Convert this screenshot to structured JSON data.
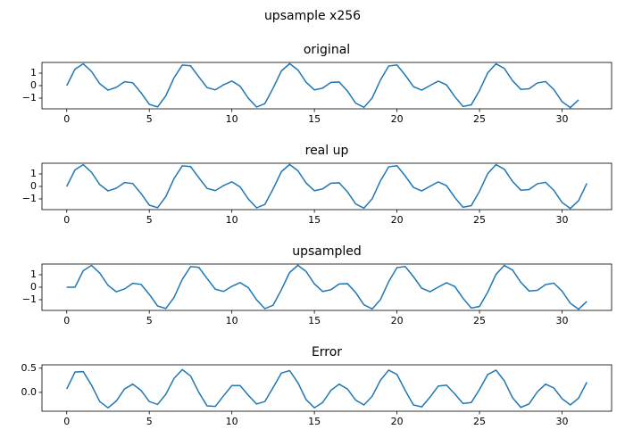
{
  "figure_title": "upsample x256",
  "chart_data": [
    {
      "type": "line",
      "title": "original",
      "color": "#1f77b4",
      "x": [
        0,
        0.5,
        1,
        1.5,
        2,
        2.5,
        3,
        3.5,
        4,
        4.5,
        5,
        5.5,
        6,
        6.5,
        7,
        7.5,
        8,
        8.5,
        9,
        9.5,
        10,
        10.5,
        11,
        11.5,
        12,
        12.5,
        13,
        13.5,
        14,
        14.5,
        15,
        15.5,
        16,
        16.5,
        17,
        17.5,
        18,
        18.5,
        19,
        19.5,
        20,
        20.5,
        21,
        21.5,
        22,
        22.5,
        23,
        23.5,
        24,
        24.5,
        25,
        25.5,
        26,
        26.5,
        27,
        27.5,
        28,
        28.5,
        29,
        29.5,
        30,
        30.5,
        31
      ],
      "values": [
        0,
        1.32,
        1.75,
        1.14,
        0.15,
        -0.36,
        -0.14,
        0.31,
        0.23,
        -0.57,
        -1.5,
        -1.71,
        -0.82,
        0.64,
        1.65,
        1.59,
        0.7,
        -0.16,
        -0.34,
        0.07,
        0.37,
        -0.04,
        -1.01,
        -1.72,
        -1.44,
        -0.2,
        1.18,
        1.76,
        1.26,
        0.27,
        -0.34,
        -0.2,
        0.26,
        0.29,
        -0.43,
        -1.41,
        -1.74,
        -0.99,
        0.45,
        1.57,
        1.66,
        0.84,
        -0.08,
        -0.36,
        0.01,
        0.36,
        0.06,
        -0.88,
        -1.67,
        -1.54,
        -0.39,
        1.03,
        1.75,
        1.38,
        0.4,
        -0.3,
        -0.25,
        0.21,
        0.33,
        -0.31,
        -1.29,
        -1.76,
        -1.14
      ],
      "xlim": [
        -1.5,
        33
      ],
      "xticks": [
        0,
        5,
        10,
        15,
        20,
        25,
        30
      ],
      "ylim": [
        -1.86,
        1.86
      ],
      "yticks": [
        {
          "value": -1,
          "label": "−1"
        },
        0,
        1
      ]
    },
    {
      "type": "line",
      "title": "real up",
      "color": "#1f77b4",
      "x": [
        0,
        0.5,
        1,
        1.5,
        2,
        2.5,
        3,
        3.5,
        4,
        4.5,
        5,
        5.5,
        6,
        6.5,
        7,
        7.5,
        8,
        8.5,
        9,
        9.5,
        10,
        10.5,
        11,
        11.5,
        12,
        12.5,
        13,
        13.5,
        14,
        14.5,
        15,
        15.5,
        16,
        16.5,
        17,
        17.5,
        18,
        18.5,
        19,
        19.5,
        20,
        20.5,
        21,
        21.5,
        22,
        22.5,
        23,
        23.5,
        24,
        24.5,
        25,
        25.5,
        26,
        26.5,
        27,
        27.5,
        28,
        28.5,
        29,
        29.5,
        30,
        30.5,
        31,
        31.5
      ],
      "values": [
        0,
        1.32,
        1.75,
        1.14,
        0.15,
        -0.36,
        -0.14,
        0.31,
        0.23,
        -0.57,
        -1.5,
        -1.71,
        -0.82,
        0.64,
        1.65,
        1.59,
        0.7,
        -0.16,
        -0.34,
        0.07,
        0.37,
        -0.04,
        -1.01,
        -1.72,
        -1.44,
        -0.2,
        1.18,
        1.76,
        1.26,
        0.27,
        -0.34,
        -0.2,
        0.26,
        0.29,
        -0.43,
        -1.41,
        -1.74,
        -0.99,
        0.45,
        1.57,
        1.66,
        0.84,
        -0.08,
        -0.36,
        0.01,
        0.36,
        0.06,
        -0.88,
        -1.67,
        -1.54,
        -0.39,
        1.03,
        1.75,
        1.38,
        0.4,
        -0.3,
        -0.25,
        0.21,
        0.33,
        -0.31,
        -1.29,
        -1.76,
        -1.14,
        0.25
      ],
      "xlim": [
        -1.5,
        33
      ],
      "xticks": [
        0,
        5,
        10,
        15,
        20,
        25,
        30
      ],
      "ylim": [
        -1.86,
        1.86
      ],
      "yticks": [
        {
          "value": -1,
          "label": "−1"
        },
        0,
        1
      ]
    },
    {
      "type": "line",
      "title": "upsampled",
      "color": "#1f77b4",
      "x": [
        0,
        0.5,
        1,
        1.5,
        2,
        2.5,
        3,
        3.5,
        4,
        4.5,
        5,
        5.5,
        6,
        6.5,
        7,
        7.5,
        8,
        8.5,
        9,
        9.5,
        10,
        10.5,
        11,
        11.5,
        12,
        12.5,
        13,
        13.5,
        14,
        14.5,
        15,
        15.5,
        16,
        16.5,
        17,
        17.5,
        18,
        18.5,
        19,
        19.5,
        20,
        20.5,
        21,
        21.5,
        22,
        22.5,
        23,
        23.5,
        24,
        24.5,
        25,
        25.5,
        26,
        26.5,
        27,
        27.5,
        28,
        28.5,
        29,
        29.5,
        30,
        30.5,
        31,
        31.5
      ],
      "values": [
        0,
        0,
        1.32,
        1.75,
        1.14,
        0.15,
        -0.36,
        -0.14,
        0.31,
        0.23,
        -0.57,
        -1.5,
        -1.71,
        -0.82,
        0.64,
        1.65,
        1.59,
        0.7,
        -0.16,
        -0.34,
        0.07,
        0.37,
        -0.04,
        -1.01,
        -1.72,
        -1.44,
        -0.2,
        1.18,
        1.76,
        1.26,
        0.27,
        -0.34,
        -0.2,
        0.26,
        0.29,
        -0.43,
        -1.41,
        -1.74,
        -0.99,
        0.45,
        1.57,
        1.66,
        0.84,
        -0.08,
        -0.36,
        0.01,
        0.36,
        0.06,
        -0.88,
        -1.67,
        -1.54,
        -0.39,
        1.03,
        1.75,
        1.38,
        0.4,
        -0.3,
        -0.25,
        0.21,
        0.33,
        -0.31,
        -1.29,
        -1.76,
        -1.14
      ],
      "xlim": [
        -1.5,
        33
      ],
      "xticks": [
        0,
        5,
        10,
        15,
        20,
        25,
        30
      ],
      "ylim": [
        -1.86,
        1.86
      ],
      "yticks": [
        {
          "value": -1,
          "label": "−1"
        },
        0,
        1
      ]
    },
    {
      "type": "line",
      "title": "Error",
      "color": "#1f77b4",
      "x": [
        0,
        0.5,
        1,
        1.5,
        2,
        2.5,
        3,
        3.5,
        4,
        4.5,
        5,
        5.5,
        6,
        6.5,
        7,
        7.5,
        8,
        8.5,
        9,
        9.5,
        10,
        10.5,
        11,
        11.5,
        12,
        12.5,
        13,
        13.5,
        14,
        14.5,
        15,
        15.5,
        16,
        16.5,
        17,
        17.5,
        18,
        18.5,
        19,
        19.5,
        20,
        20.5,
        21,
        21.5,
        22,
        22.5,
        23,
        23.5,
        24,
        24.5,
        25,
        25.5,
        26,
        26.5,
        27,
        27.5,
        28,
        28.5,
        29,
        29.5,
        30,
        30.5,
        31,
        31.5
      ],
      "values": [
        0.07,
        0.42,
        0.43,
        0.15,
        -0.19,
        -0.32,
        -0.18,
        0.07,
        0.17,
        0.04,
        -0.19,
        -0.25,
        -0.04,
        0.29,
        0.47,
        0.34,
        0,
        -0.28,
        -0.29,
        -0.07,
        0.14,
        0.14,
        -0.06,
        -0.24,
        -0.19,
        0.1,
        0.4,
        0.45,
        0.2,
        -0.15,
        -0.32,
        -0.21,
        0.04,
        0.17,
        0.07,
        -0.16,
        -0.26,
        -0.08,
        0.25,
        0.46,
        0.37,
        0.04,
        -0.26,
        -0.3,
        -0.1,
        0.13,
        0.15,
        -0.03,
        -0.23,
        -0.21,
        0.06,
        0.37,
        0.46,
        0.24,
        -0.11,
        -0.31,
        -0.24,
        0.01,
        0.17,
        0.09,
        -0.13,
        -0.26,
        -0.12,
        0.21
      ],
      "xlim": [
        -1.5,
        33
      ],
      "xticks": [
        0,
        5,
        10,
        15,
        20,
        25,
        30
      ],
      "ylim": [
        -0.39,
        0.57
      ],
      "yticks": [
        {
          "value": 0,
          "label": "0.0"
        },
        {
          "value": 0.5,
          "label": "0.5"
        }
      ]
    }
  ]
}
